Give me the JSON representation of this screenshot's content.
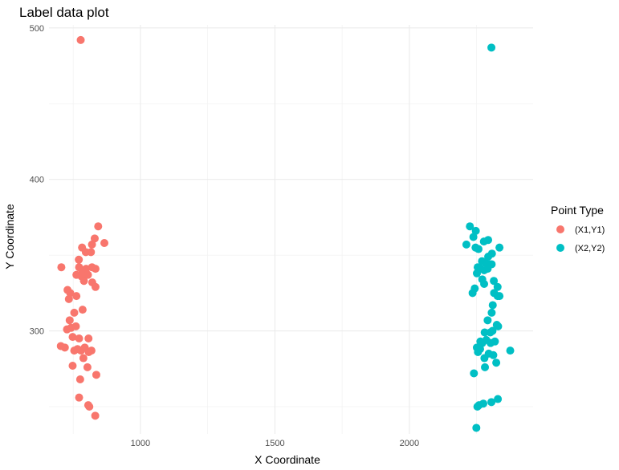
{
  "chart_data": {
    "type": "scatter",
    "title": "Label data plot",
    "xlabel": "X Coordinate",
    "ylabel": "Y Coordinate",
    "xlim": [
      660,
      2460
    ],
    "ylim": [
      232,
      502
    ],
    "x_ticks": [
      1000,
      1500,
      2000
    ],
    "x_tick_labels": [
      "1000",
      "1500",
      "2000"
    ],
    "y_ticks": [
      300,
      400,
      500
    ],
    "y_tick_labels": [
      "300",
      "400",
      "500"
    ],
    "grid": true,
    "legend": {
      "title": "Point Type",
      "position": "right"
    },
    "series": [
      {
        "name": "(X1,Y1)",
        "color": "#F8766D",
        "points": [
          [
            778,
            492
          ],
          [
            843,
            369
          ],
          [
            866,
            358
          ],
          [
            830,
            361
          ],
          [
            820,
            357
          ],
          [
            783,
            355
          ],
          [
            797,
            352
          ],
          [
            816,
            352
          ],
          [
            771,
            347
          ],
          [
            706,
            342
          ],
          [
            772,
            342
          ],
          [
            784,
            340
          ],
          [
            798,
            341
          ],
          [
            820,
            342
          ],
          [
            833,
            341
          ],
          [
            762,
            337
          ],
          [
            781,
            336
          ],
          [
            805,
            337
          ],
          [
            790,
            333
          ],
          [
            821,
            332
          ],
          [
            833,
            329
          ],
          [
            729,
            327
          ],
          [
            739,
            325
          ],
          [
            762,
            323
          ],
          [
            734,
            321
          ],
          [
            785,
            314
          ],
          [
            754,
            312
          ],
          [
            737,
            307
          ],
          [
            727,
            301
          ],
          [
            742,
            302
          ],
          [
            760,
            303
          ],
          [
            748,
            296
          ],
          [
            772,
            295
          ],
          [
            807,
            295
          ],
          [
            704,
            290
          ],
          [
            719,
            289
          ],
          [
            754,
            287
          ],
          [
            766,
            288
          ],
          [
            779,
            287
          ],
          [
            793,
            289
          ],
          [
            808,
            286
          ],
          [
            818,
            287
          ],
          [
            788,
            282
          ],
          [
            748,
            277
          ],
          [
            803,
            276
          ],
          [
            836,
            271
          ],
          [
            776,
            268
          ],
          [
            772,
            256
          ],
          [
            806,
            251
          ],
          [
            810,
            250
          ],
          [
            832,
            244
          ]
        ]
      },
      {
        "name": "(X2,Y2)",
        "color": "#00BFC4",
        "points": [
          [
            2305,
            487
          ],
          [
            2225,
            369
          ],
          [
            2247,
            366
          ],
          [
            2238,
            362
          ],
          [
            2277,
            359
          ],
          [
            2293,
            360
          ],
          [
            2212,
            357
          ],
          [
            2335,
            355
          ],
          [
            2246,
            355
          ],
          [
            2257,
            354
          ],
          [
            2307,
            351
          ],
          [
            2293,
            349
          ],
          [
            2270,
            346
          ],
          [
            2282,
            345
          ],
          [
            2298,
            344
          ],
          [
            2306,
            344
          ],
          [
            2254,
            342
          ],
          [
            2264,
            341
          ],
          [
            2278,
            340
          ],
          [
            2291,
            341
          ],
          [
            2251,
            338
          ],
          [
            2271,
            334
          ],
          [
            2278,
            331
          ],
          [
            2314,
            333
          ],
          [
            2328,
            329
          ],
          [
            2243,
            328
          ],
          [
            2315,
            325
          ],
          [
            2235,
            325
          ],
          [
            2328,
            323
          ],
          [
            2335,
            323
          ],
          [
            2310,
            317
          ],
          [
            2306,
            312
          ],
          [
            2291,
            307
          ],
          [
            2325,
            304
          ],
          [
            2330,
            303
          ],
          [
            2301,
            299
          ],
          [
            2280,
            299
          ],
          [
            2309,
            300
          ],
          [
            2264,
            293
          ],
          [
            2271,
            292
          ],
          [
            2286,
            294
          ],
          [
            2302,
            292
          ],
          [
            2318,
            293
          ],
          [
            2251,
            289
          ],
          [
            2263,
            288
          ],
          [
            2375,
            287
          ],
          [
            2255,
            286
          ],
          [
            2295,
            285
          ],
          [
            2312,
            284
          ],
          [
            2279,
            282
          ],
          [
            2323,
            279
          ],
          [
            2281,
            276
          ],
          [
            2240,
            272
          ],
          [
            2329,
            255
          ],
          [
            2305,
            253
          ],
          [
            2275,
            252
          ],
          [
            2259,
            251
          ],
          [
            2253,
            250
          ],
          [
            2249,
            236
          ]
        ]
      }
    ]
  }
}
